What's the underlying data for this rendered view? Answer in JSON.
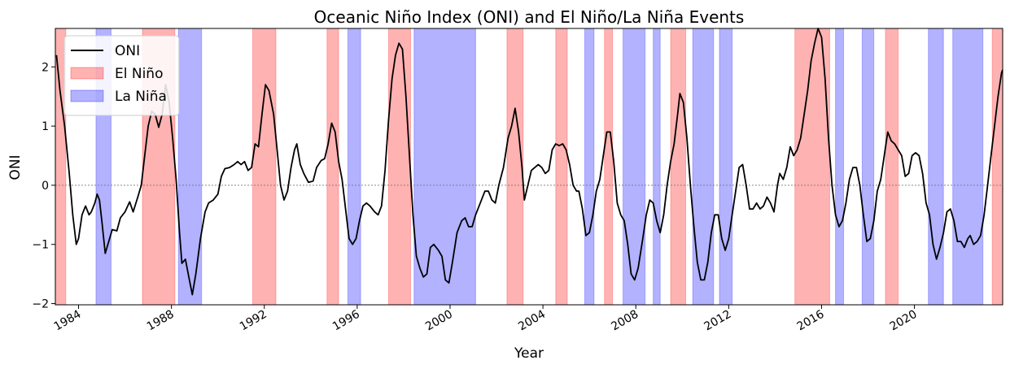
{
  "chart_data": {
    "type": "line",
    "title": "Oceanic Niño Index (ONI) and El Niño/La Niña Events",
    "xlabel": "Year",
    "ylabel": "ONI",
    "xlim": [
      1983.0,
      2023.8
    ],
    "ylim": [
      -2.02,
      2.65
    ],
    "x_ticks": [
      1984,
      1988,
      1992,
      1996,
      2000,
      2004,
      2008,
      2012,
      2016,
      2020
    ],
    "x_tick_labels": [
      "1984",
      "1988",
      "1992",
      "1996",
      "2000",
      "2004",
      "2008",
      "2012",
      "2016",
      "2020"
    ],
    "y_ticks": [
      -2,
      -1,
      0,
      1,
      2
    ],
    "y_tick_labels": [
      "−2",
      "−1",
      "0",
      "1",
      "2"
    ],
    "zero_line": true,
    "legend_placement": "upper-left",
    "legend": [
      {
        "label": "ONI",
        "kind": "line",
        "color": "#000000"
      },
      {
        "label": "El Niño",
        "kind": "patch",
        "color": "#ff0000"
      },
      {
        "label": "La Niña",
        "kind": "patch",
        "color": "#0000ff"
      }
    ],
    "colors": {
      "line": "#000000",
      "el_nino": "#ff0000",
      "la_nina": "#0000ff"
    },
    "el_nino_periods": [
      [
        1983.0,
        1983.45
      ],
      [
        1986.75,
        1988.15
      ],
      [
        1991.5,
        1992.5
      ],
      [
        1994.7,
        1995.2
      ],
      [
        1997.35,
        1998.3
      ],
      [
        2002.45,
        2003.15
      ],
      [
        2004.55,
        2005.05
      ],
      [
        2006.65,
        2007.0
      ],
      [
        2009.5,
        2010.15
      ],
      [
        2014.85,
        2016.35
      ],
      [
        2018.75,
        2019.3
      ],
      [
        2023.35,
        2023.8
      ]
    ],
    "la_nina_periods": [
      [
        1984.75,
        1985.4
      ],
      [
        1988.3,
        1989.3
      ],
      [
        1995.6,
        1996.15
      ],
      [
        1998.45,
        2001.1
      ],
      [
        2005.8,
        2006.2
      ],
      [
        2007.45,
        2008.4
      ],
      [
        2008.75,
        2009.05
      ],
      [
        2010.45,
        2011.35
      ],
      [
        2011.6,
        2012.15
      ],
      [
        2016.6,
        2016.95
      ],
      [
        2017.75,
        2018.25
      ],
      [
        2020.6,
        2021.25
      ],
      [
        2021.65,
        2022.95
      ]
    ],
    "series": [
      {
        "name": "ONI",
        "points": [
          [
            1983.05,
            2.2
          ],
          [
            1983.2,
            1.6
          ],
          [
            1983.4,
            1.0
          ],
          [
            1983.6,
            0.2
          ],
          [
            1983.75,
            -0.5
          ],
          [
            1983.9,
            -1.0
          ],
          [
            1984.0,
            -0.9
          ],
          [
            1984.15,
            -0.5
          ],
          [
            1984.3,
            -0.35
          ],
          [
            1984.45,
            -0.5
          ],
          [
            1984.55,
            -0.45
          ],
          [
            1984.7,
            -0.3
          ],
          [
            1984.8,
            -0.15
          ],
          [
            1984.9,
            -0.25
          ],
          [
            1985.0,
            -0.6
          ],
          [
            1985.15,
            -1.15
          ],
          [
            1985.3,
            -0.95
          ],
          [
            1985.45,
            -0.75
          ],
          [
            1985.65,
            -0.77
          ],
          [
            1985.8,
            -0.55
          ],
          [
            1986.0,
            -0.45
          ],
          [
            1986.2,
            -0.28
          ],
          [
            1986.35,
            -0.45
          ],
          [
            1986.55,
            -0.2
          ],
          [
            1986.7,
            0.0
          ],
          [
            1986.85,
            0.5
          ],
          [
            1987.0,
            1.0
          ],
          [
            1987.15,
            1.25
          ],
          [
            1987.3,
            1.2
          ],
          [
            1987.45,
            0.98
          ],
          [
            1987.6,
            1.2
          ],
          [
            1987.75,
            1.7
          ],
          [
            1987.9,
            1.4
          ],
          [
            1988.05,
            0.8
          ],
          [
            1988.2,
            0.1
          ],
          [
            1988.35,
            -0.8
          ],
          [
            1988.45,
            -1.32
          ],
          [
            1988.6,
            -1.25
          ],
          [
            1988.75,
            -1.55
          ],
          [
            1988.9,
            -1.85
          ],
          [
            1989.05,
            -1.5
          ],
          [
            1989.25,
            -0.9
          ],
          [
            1989.45,
            -0.45
          ],
          [
            1989.6,
            -0.3
          ],
          [
            1989.8,
            -0.25
          ],
          [
            1990.0,
            -0.15
          ],
          [
            1990.15,
            0.15
          ],
          [
            1990.3,
            0.28
          ],
          [
            1990.5,
            0.3
          ],
          [
            1990.7,
            0.35
          ],
          [
            1990.85,
            0.4
          ],
          [
            1991.0,
            0.35
          ],
          [
            1991.15,
            0.4
          ],
          [
            1991.3,
            0.25
          ],
          [
            1991.45,
            0.3
          ],
          [
            1991.6,
            0.7
          ],
          [
            1991.75,
            0.65
          ],
          [
            1991.9,
            1.2
          ],
          [
            1992.05,
            1.7
          ],
          [
            1992.2,
            1.6
          ],
          [
            1992.4,
            1.2
          ],
          [
            1992.55,
            0.6
          ],
          [
            1992.7,
            0.0
          ],
          [
            1992.85,
            -0.25
          ],
          [
            1993.0,
            -0.1
          ],
          [
            1993.15,
            0.3
          ],
          [
            1993.3,
            0.6
          ],
          [
            1993.4,
            0.7
          ],
          [
            1993.55,
            0.35
          ],
          [
            1993.7,
            0.2
          ],
          [
            1993.9,
            0.05
          ],
          [
            1994.1,
            0.07
          ],
          [
            1994.25,
            0.3
          ],
          [
            1994.45,
            0.42
          ],
          [
            1994.6,
            0.45
          ],
          [
            1994.75,
            0.7
          ],
          [
            1994.9,
            1.05
          ],
          [
            1995.05,
            0.9
          ],
          [
            1995.2,
            0.4
          ],
          [
            1995.35,
            0.1
          ],
          [
            1995.5,
            -0.4
          ],
          [
            1995.65,
            -0.9
          ],
          [
            1995.8,
            -1.0
          ],
          [
            1995.95,
            -0.9
          ],
          [
            1996.1,
            -0.6
          ],
          [
            1996.25,
            -0.35
          ],
          [
            1996.4,
            -0.3
          ],
          [
            1996.55,
            -0.35
          ],
          [
            1996.75,
            -0.45
          ],
          [
            1996.9,
            -0.5
          ],
          [
            1997.05,
            -0.35
          ],
          [
            1997.2,
            0.25
          ],
          [
            1997.35,
            1.1
          ],
          [
            1997.5,
            1.8
          ],
          [
            1997.65,
            2.2
          ],
          [
            1997.8,
            2.4
          ],
          [
            1997.95,
            2.3
          ],
          [
            1998.1,
            1.5
          ],
          [
            1998.25,
            0.5
          ],
          [
            1998.4,
            -0.5
          ],
          [
            1998.55,
            -1.2
          ],
          [
            1998.7,
            -1.4
          ],
          [
            1998.85,
            -1.55
          ],
          [
            1999.0,
            -1.5
          ],
          [
            1999.15,
            -1.05
          ],
          [
            1999.3,
            -1.0
          ],
          [
            1999.5,
            -1.1
          ],
          [
            1999.65,
            -1.2
          ],
          [
            1999.8,
            -1.6
          ],
          [
            1999.95,
            -1.65
          ],
          [
            2000.1,
            -1.3
          ],
          [
            2000.3,
            -0.8
          ],
          [
            2000.5,
            -0.6
          ],
          [
            2000.65,
            -0.55
          ],
          [
            2000.8,
            -0.7
          ],
          [
            2000.95,
            -0.7
          ],
          [
            2001.1,
            -0.5
          ],
          [
            2001.3,
            -0.3
          ],
          [
            2001.5,
            -0.1
          ],
          [
            2001.65,
            -0.1
          ],
          [
            2001.8,
            -0.25
          ],
          [
            2001.95,
            -0.3
          ],
          [
            2002.1,
            0.0
          ],
          [
            2002.3,
            0.3
          ],
          [
            2002.5,
            0.8
          ],
          [
            2002.65,
            1.0
          ],
          [
            2002.8,
            1.3
          ],
          [
            2002.95,
            0.9
          ],
          [
            2003.1,
            0.3
          ],
          [
            2003.2,
            -0.25
          ],
          [
            2003.35,
            0.0
          ],
          [
            2003.5,
            0.25
          ],
          [
            2003.65,
            0.3
          ],
          [
            2003.8,
            0.35
          ],
          [
            2003.95,
            0.3
          ],
          [
            2004.1,
            0.2
          ],
          [
            2004.25,
            0.25
          ],
          [
            2004.4,
            0.6
          ],
          [
            2004.55,
            0.7
          ],
          [
            2004.7,
            0.67
          ],
          [
            2004.85,
            0.7
          ],
          [
            2005.0,
            0.6
          ],
          [
            2005.15,
            0.35
          ],
          [
            2005.3,
            0.0
          ],
          [
            2005.45,
            -0.1
          ],
          [
            2005.55,
            -0.1
          ],
          [
            2005.7,
            -0.4
          ],
          [
            2005.85,
            -0.85
          ],
          [
            2006.0,
            -0.8
          ],
          [
            2006.15,
            -0.5
          ],
          [
            2006.3,
            -0.1
          ],
          [
            2006.45,
            0.1
          ],
          [
            2006.6,
            0.5
          ],
          [
            2006.75,
            0.9
          ],
          [
            2006.9,
            0.9
          ],
          [
            2007.05,
            0.4
          ],
          [
            2007.2,
            -0.3
          ],
          [
            2007.35,
            -0.5
          ],
          [
            2007.5,
            -0.6
          ],
          [
            2007.65,
            -1.0
          ],
          [
            2007.8,
            -1.5
          ],
          [
            2007.95,
            -1.6
          ],
          [
            2008.1,
            -1.4
          ],
          [
            2008.3,
            -0.9
          ],
          [
            2008.45,
            -0.5
          ],
          [
            2008.6,
            -0.25
          ],
          [
            2008.75,
            -0.3
          ],
          [
            2008.9,
            -0.6
          ],
          [
            2009.05,
            -0.8
          ],
          [
            2009.2,
            -0.5
          ],
          [
            2009.35,
            0.0
          ],
          [
            2009.5,
            0.4
          ],
          [
            2009.65,
            0.7
          ],
          [
            2009.8,
            1.2
          ],
          [
            2009.9,
            1.55
          ],
          [
            2010.05,
            1.4
          ],
          [
            2010.2,
            0.8
          ],
          [
            2010.35,
            0.0
          ],
          [
            2010.5,
            -0.7
          ],
          [
            2010.65,
            -1.3
          ],
          [
            2010.8,
            -1.6
          ],
          [
            2010.95,
            -1.6
          ],
          [
            2011.1,
            -1.3
          ],
          [
            2011.25,
            -0.8
          ],
          [
            2011.4,
            -0.5
          ],
          [
            2011.55,
            -0.5
          ],
          [
            2011.7,
            -0.9
          ],
          [
            2011.85,
            -1.1
          ],
          [
            2012.0,
            -0.9
          ],
          [
            2012.15,
            -0.5
          ],
          [
            2012.3,
            -0.1
          ],
          [
            2012.45,
            0.3
          ],
          [
            2012.6,
            0.35
          ],
          [
            2012.75,
            0.0
          ],
          [
            2012.9,
            -0.4
          ],
          [
            2013.05,
            -0.4
          ],
          [
            2013.2,
            -0.3
          ],
          [
            2013.35,
            -0.4
          ],
          [
            2013.5,
            -0.35
          ],
          [
            2013.65,
            -0.2
          ],
          [
            2013.8,
            -0.3
          ],
          [
            2013.95,
            -0.45
          ],
          [
            2014.1,
            0.0
          ],
          [
            2014.2,
            0.2
          ],
          [
            2014.35,
            0.1
          ],
          [
            2014.5,
            0.3
          ],
          [
            2014.65,
            0.65
          ],
          [
            2014.8,
            0.5
          ],
          [
            2014.95,
            0.6
          ],
          [
            2015.1,
            0.8
          ],
          [
            2015.25,
            1.2
          ],
          [
            2015.4,
            1.6
          ],
          [
            2015.55,
            2.1
          ],
          [
            2015.7,
            2.4
          ],
          [
            2015.85,
            2.65
          ],
          [
            2016.0,
            2.5
          ],
          [
            2016.15,
            1.8
          ],
          [
            2016.3,
            0.8
          ],
          [
            2016.45,
            0.0
          ],
          [
            2016.6,
            -0.5
          ],
          [
            2016.75,
            -0.7
          ],
          [
            2016.9,
            -0.6
          ],
          [
            2017.05,
            -0.3
          ],
          [
            2017.2,
            0.1
          ],
          [
            2017.35,
            0.3
          ],
          [
            2017.5,
            0.3
          ],
          [
            2017.65,
            0.0
          ],
          [
            2017.8,
            -0.5
          ],
          [
            2017.95,
            -0.95
          ],
          [
            2018.1,
            -0.9
          ],
          [
            2018.25,
            -0.6
          ],
          [
            2018.4,
            -0.1
          ],
          [
            2018.55,
            0.1
          ],
          [
            2018.7,
            0.5
          ],
          [
            2018.85,
            0.9
          ],
          [
            2019.0,
            0.75
          ],
          [
            2019.15,
            0.7
          ],
          [
            2019.3,
            0.6
          ],
          [
            2019.45,
            0.5
          ],
          [
            2019.6,
            0.15
          ],
          [
            2019.75,
            0.2
          ],
          [
            2019.9,
            0.5
          ],
          [
            2020.05,
            0.55
          ],
          [
            2020.2,
            0.5
          ],
          [
            2020.35,
            0.2
          ],
          [
            2020.5,
            -0.3
          ],
          [
            2020.65,
            -0.5
          ],
          [
            2020.8,
            -1.0
          ],
          [
            2020.95,
            -1.25
          ],
          [
            2021.1,
            -1.05
          ],
          [
            2021.25,
            -0.8
          ],
          [
            2021.4,
            -0.45
          ],
          [
            2021.55,
            -0.4
          ],
          [
            2021.7,
            -0.6
          ],
          [
            2021.85,
            -0.95
          ],
          [
            2022.0,
            -0.95
          ],
          [
            2022.15,
            -1.05
          ],
          [
            2022.3,
            -0.9
          ],
          [
            2022.4,
            -0.85
          ],
          [
            2022.55,
            -1.0
          ],
          [
            2022.7,
            -0.95
          ],
          [
            2022.85,
            -0.85
          ],
          [
            2023.0,
            -0.5
          ],
          [
            2023.15,
            0.0
          ],
          [
            2023.3,
            0.5
          ],
          [
            2023.45,
            1.0
          ],
          [
            2023.6,
            1.5
          ],
          [
            2023.75,
            1.9
          ],
          [
            2023.8,
            1.95
          ]
        ]
      }
    ]
  }
}
